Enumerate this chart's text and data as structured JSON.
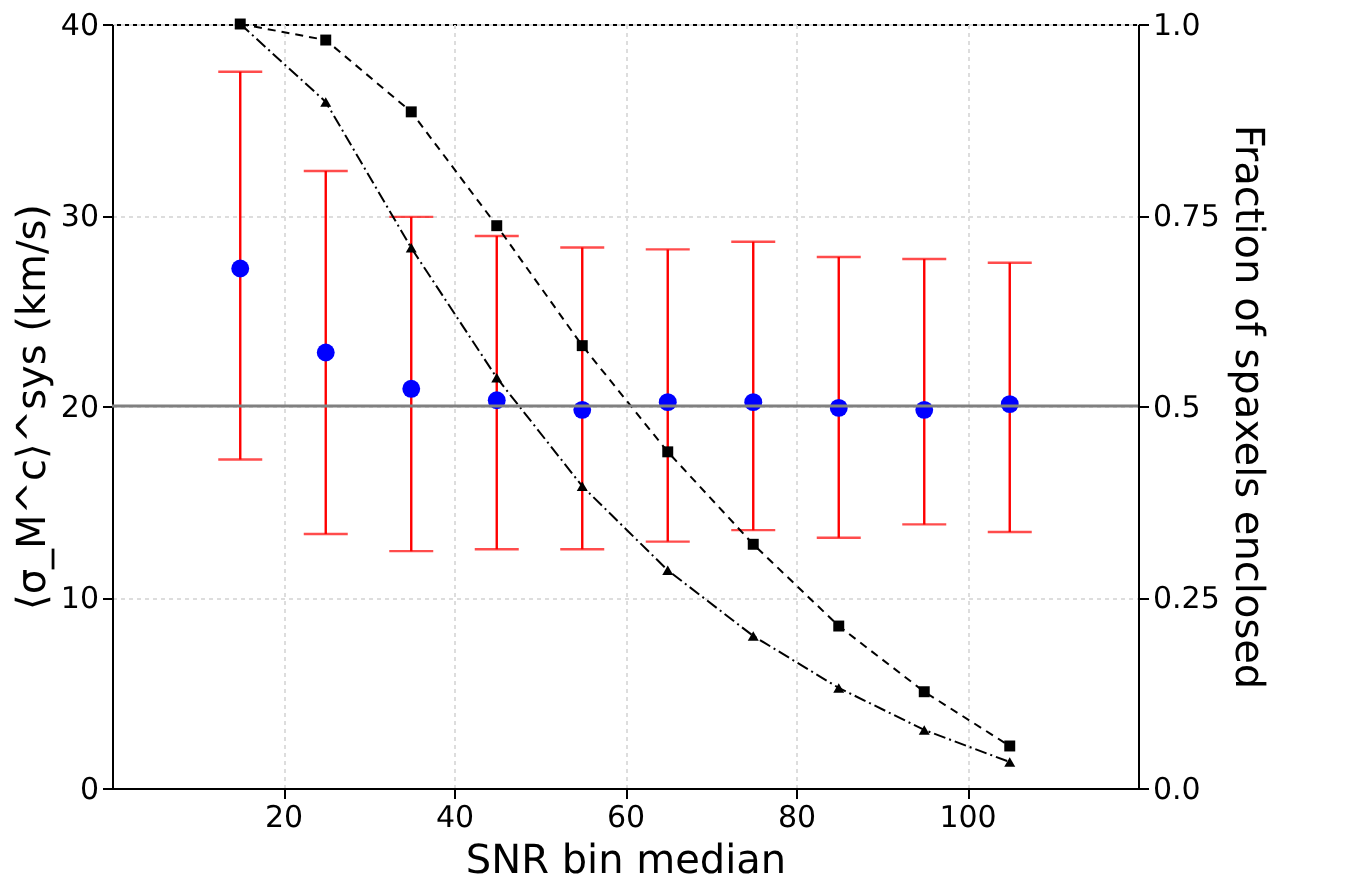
{
  "chart_data": {
    "type": "scatter",
    "xlabel": "SNR bin median",
    "ylabel": "⟨σ_M^c⟩^sys (km/s)",
    "y2label": "Fraction of spaxels enclosed",
    "x": [
      15,
      25,
      35,
      45,
      55,
      65,
      75,
      85,
      95,
      105
    ],
    "series": [
      {
        "color": "#0000ff",
        "marker": "circle",
        "values": [
          27.2,
          22.8,
          20.9,
          20.3,
          19.8,
          20.2,
          20.2,
          19.9,
          19.8,
          20.1
        ],
        "errors": [
          [
            17.2,
            37.5
          ],
          [
            13.3,
            32.3
          ],
          [
            12.4,
            29.9
          ],
          [
            12.5,
            28.9
          ],
          [
            12.5,
            28.3
          ],
          [
            12.9,
            28.2
          ],
          [
            13.5,
            28.6
          ],
          [
            13.1,
            27.8
          ],
          [
            13.8,
            27.7
          ],
          [
            13.4,
            27.5
          ]
        ]
      },
      {
        "type": "line",
        "axis": "y2",
        "color": "#000000",
        "marker": "triangle",
        "line_style": "dotted",
        "values": [
          1.0,
          0.898,
          0.707,
          0.537,
          0.395,
          0.285,
          0.199,
          0.131,
          0.076,
          0.034
        ]
      },
      {
        "type": "line",
        "axis": "y2",
        "color": "#000000",
        "marker": "square",
        "line_style": "dashed",
        "values": [
          1.0,
          0.979,
          0.885,
          0.736,
          0.579,
          0.44,
          0.319,
          0.212,
          0.126,
          0.055
        ]
      }
    ],
    "xlim": [
      0,
      120
    ],
    "xticks": [
      20,
      40,
      60,
      80,
      100
    ],
    "ylim": [
      0,
      40
    ],
    "yticks": [
      0,
      10,
      20,
      30,
      40
    ],
    "y2lim": [
      0,
      1
    ],
    "y2ticks": [
      {
        "value": 0,
        "label": "0.0"
      },
      0.25,
      {
        "value": 0.5,
        "label": "0.5"
      },
      0.75,
      {
        "value": 1,
        "label": "1.0"
      }
    ],
    "ref_lines": [
      {
        "axis": "y2",
        "value": 0.5,
        "color": "#808080"
      }
    ],
    "grid": true
  }
}
